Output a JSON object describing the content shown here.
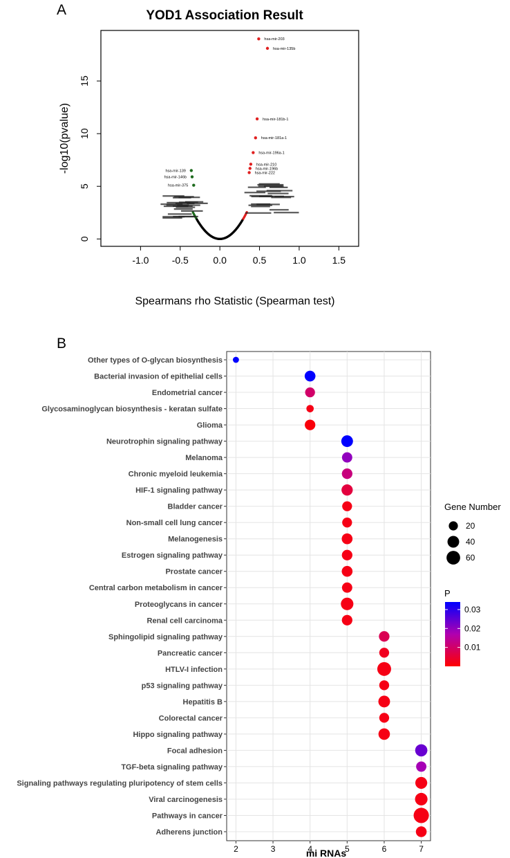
{
  "panel_labels": {
    "a": "A",
    "b": "B"
  },
  "chart_data": [
    {
      "type": "scatter",
      "title": "YOD1 Association Result",
      "xlabel": "Spearmans rho Statistic (Spearman test)",
      "ylabel": "-log10(pvalue)",
      "xlim": [
        -1.5,
        1.75
      ],
      "ylim": [
        -0.7,
        19.8
      ],
      "xticks": [
        -1.0,
        -0.5,
        0.0,
        0.5,
        1.0,
        1.5
      ],
      "xtick_labels": [
        "-1.0",
        "-0.5",
        "0.0",
        "0.5",
        "1.0",
        "1.5"
      ],
      "yticks": [
        0,
        5,
        10,
        15
      ],
      "ytick_labels": [
        "0",
        "5",
        "10",
        "15"
      ],
      "colors": {
        "negative": "#1e6b1e",
        "positive": "#e02020",
        "baseline": "#000000"
      },
      "labeled_points": [
        {
          "label": "hsa-mir-203",
          "x": 0.49,
          "y": 19.0,
          "color": "positive"
        },
        {
          "label": "hsa-mir-135b",
          "x": 0.6,
          "y": 18.1,
          "color": "positive"
        },
        {
          "label": "hsa-mir-181b-1",
          "x": 0.47,
          "y": 11.4,
          "color": "positive"
        },
        {
          "label": "hsa-mir-181a-1",
          "x": 0.45,
          "y": 9.6,
          "color": "positive"
        },
        {
          "label": "hsa-mir-196a-1",
          "x": 0.42,
          "y": 8.2,
          "color": "positive"
        },
        {
          "label": "hsa-mir-210",
          "x": 0.39,
          "y": 7.1,
          "color": "positive"
        },
        {
          "label": "hsa-mir-196b",
          "x": 0.38,
          "y": 6.7,
          "color": "positive"
        },
        {
          "label": "hsa-mir-222",
          "x": 0.37,
          "y": 6.3,
          "color": "positive"
        },
        {
          "label": "hsa-mir-139",
          "x": -0.36,
          "y": 6.5,
          "color": "negative"
        },
        {
          "label": "hsa-mir-146b",
          "x": -0.35,
          "y": 5.9,
          "color": "negative"
        },
        {
          "label": "hsa-mir-375",
          "x": -0.33,
          "y": 5.1,
          "color": "negative"
        }
      ]
    },
    {
      "type": "scatter",
      "subtype": "dot-plot",
      "xlabel": "mi RNAs",
      "ylabel": "",
      "xlim": [
        1.75,
        7.25
      ],
      "xticks": [
        2,
        3,
        4,
        5,
        6,
        7
      ],
      "xtick_labels": [
        "2",
        "3",
        "4",
        "5",
        "6",
        "7"
      ],
      "categories": [
        "Other types of O-glycan biosynthesis",
        "Bacterial invasion of epithelial cells",
        "Endometrial cancer",
        "Glycosaminoglycan biosynthesis - keratan sulfate",
        "Glioma",
        "Neurotrophin signaling pathway",
        "Melanoma",
        "Chronic myeloid leukemia",
        "HIF-1 signaling pathway",
        "Bladder cancer",
        "Non-small cell lung cancer",
        "Melanogenesis",
        "Estrogen signaling pathway",
        "Prostate cancer",
        "Central carbon metabolism in cancer",
        "Proteoglycans in cancer",
        "Renal cell carcinoma",
        "Sphingolipid signaling pathway",
        "Pancreatic cancer",
        "HTLV-I infection",
        "p53 signaling pathway",
        "Hepatitis B",
        "Colorectal cancer",
        "Hippo signaling pathway",
        "Focal adhesion",
        "TGF-beta signaling pathway",
        "Signaling pathways regulating pluripotency of stem cells",
        "Viral carcinogenesis",
        "Pathways in cancer",
        "Adherens junction"
      ],
      "mirnas": [
        2,
        4,
        4,
        4,
        4,
        5,
        5,
        5,
        5,
        5,
        5,
        5,
        5,
        5,
        5,
        5,
        5,
        6,
        6,
        6,
        6,
        6,
        6,
        6,
        7,
        7,
        7,
        7,
        7,
        7
      ],
      "gene_numbers": [
        5,
        32,
        25,
        10,
        30,
        40,
        28,
        30,
        36,
        25,
        25,
        32,
        30,
        32,
        28,
        48,
        30,
        30,
        25,
        62,
        25,
        40,
        25,
        38,
        45,
        28,
        42,
        48,
        80,
        32
      ],
      "p_values": [
        0.034,
        0.034,
        0.01,
        0.002,
        0.001,
        0.034,
        0.02,
        0.012,
        0.006,
        0.002,
        0.002,
        0.002,
        0.002,
        0.002,
        0.002,
        0.002,
        0.002,
        0.008,
        0.003,
        0.002,
        0.002,
        0.002,
        0.002,
        0.002,
        0.024,
        0.018,
        0.002,
        0.002,
        0.002,
        0.002
      ],
      "size_legend": {
        "title": "Gene Number",
        "values": [
          20,
          40,
          60
        ],
        "labels": [
          "20",
          "40",
          "60"
        ]
      },
      "color_legend": {
        "title": "P",
        "min": 0.0,
        "max": 0.034,
        "low_color": "#ff0000",
        "mid_color": "#b000b0",
        "high_color": "#0000ff",
        "ticks": [
          0.01,
          0.02,
          0.03
        ],
        "tick_labels": [
          "0.01",
          "0.02",
          "0.03"
        ]
      }
    }
  ]
}
